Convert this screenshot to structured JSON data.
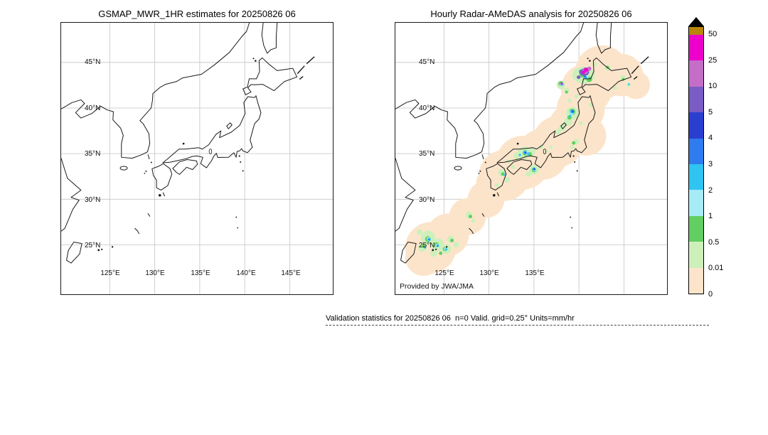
{
  "panels": {
    "left": {
      "title": "GSMAP_MWR_1HR estimates for 20250826 06"
    },
    "right": {
      "title": "Hourly Radar-AMeDAS analysis for 20250826 06",
      "attribution": "Provided by JWA/JMA"
    }
  },
  "axes": {
    "lat_labels": [
      "45°N",
      "40°N",
      "35°N",
      "30°N",
      "25°N"
    ],
    "lon_labels_left": [
      "125°E",
      "130°E",
      "135°E",
      "140°E",
      "145°E"
    ],
    "lon_labels_right": [
      "125°E",
      "130°E",
      "135°E"
    ]
  },
  "colorbar": {
    "labels": [
      "50",
      "25",
      "10",
      "5",
      "4",
      "3",
      "2",
      "1",
      "0.5",
      "0.01",
      "0"
    ],
    "arrow_color": "#000000",
    "overflow_color": "#b8860b",
    "colors_top_to_bottom": [
      "#ee00cc",
      "#c46ec8",
      "#7a5cc5",
      "#2a3fcf",
      "#2f7bef",
      "#2fc4f2",
      "#a5ecf7",
      "#62cf62",
      "#cdf0bb",
      "#fce4ca"
    ],
    "palette": {
      "peach": "#fce4ca",
      "pale_green": "#cdf0bb",
      "green": "#62cf62",
      "light_cyan": "#a5ecf7",
      "cyan": "#2fc4f2",
      "blue": "#2f7bef",
      "navy": "#2a3fcf",
      "purple": "#7a5cc5",
      "orchid": "#c46ec8",
      "magenta": "#ee00cc",
      "gold": "#b8860b"
    }
  },
  "footer": {
    "text": "Validation statistics for 20250826 06  n=0 Valid. grid=0.25° Units=mm/hr"
  },
  "chart_data": [
    {
      "type": "heatmap",
      "subtype": "geographic_precipitation_map",
      "title": "GSMAP_MWR_1HR estimates for 20250826 06",
      "lon_range_deg_e": [
        119.6,
        149.8
      ],
      "lat_range_deg_n": [
        19.5,
        49.4
      ],
      "grid": "on",
      "values": "none plotted (n=0, no valid satellite estimates this hour)"
    },
    {
      "type": "heatmap",
      "subtype": "geographic_precipitation_map",
      "title": "Hourly Radar-AMeDAS analysis for 20250826 06",
      "lon_range_deg_e": [
        119.6,
        149.8
      ],
      "lat_range_deg_n": [
        19.5,
        49.4
      ],
      "grid": "on",
      "units": "mm/hr",
      "legend_position": "right",
      "levels": [
        0,
        0.01,
        0.5,
        1,
        2,
        3,
        4,
        5,
        10,
        25,
        50
      ],
      "level_colors_low_to_high": [
        "#fce4ca",
        "#cdf0bb",
        "#62cf62",
        "#a5ecf7",
        "#2fc4f2",
        "#2f7bef",
        "#2a3fcf",
        "#7a5cc5",
        "#c46ec8",
        "#ee00cc",
        "#b8860b"
      ],
      "notable_features": [
        {
          "area": "northwest Hokkaido",
          "approx_lon": 140.6,
          "approx_lat": 45.0,
          "peak_intensity_mmhr": "10-50 (orchid/magenta core)"
        },
        {
          "area": "west Tohoku coast (Akita area)",
          "approx_lon": 139.9,
          "approx_lat": 40.1,
          "peak_intensity_mmhr": "3-5 (blue core)"
        },
        {
          "area": "San-in coast, western Honshu",
          "approx_lon": 133.5,
          "approx_lat": 35.2,
          "peak_intensity_mmhr": "2-4 (cyan/blue cells)"
        },
        {
          "area": "Tokushima / Kii channel",
          "approx_lon": 134.9,
          "approx_lat": 33.6,
          "peak_intensity_mmhr": "3-5 (blue/navy cells)"
        },
        {
          "area": "Okinawa and Sakishima islands",
          "approx_lon": 125.5,
          "approx_lat": 25.5,
          "peak_intensity_mmhr": "1-3 (green/cyan cells)"
        },
        {
          "area": "radar coverage band along whole archipelago",
          "peak_intensity_mmhr": "0-0.01 trace (peach background)"
        }
      ]
    }
  ]
}
